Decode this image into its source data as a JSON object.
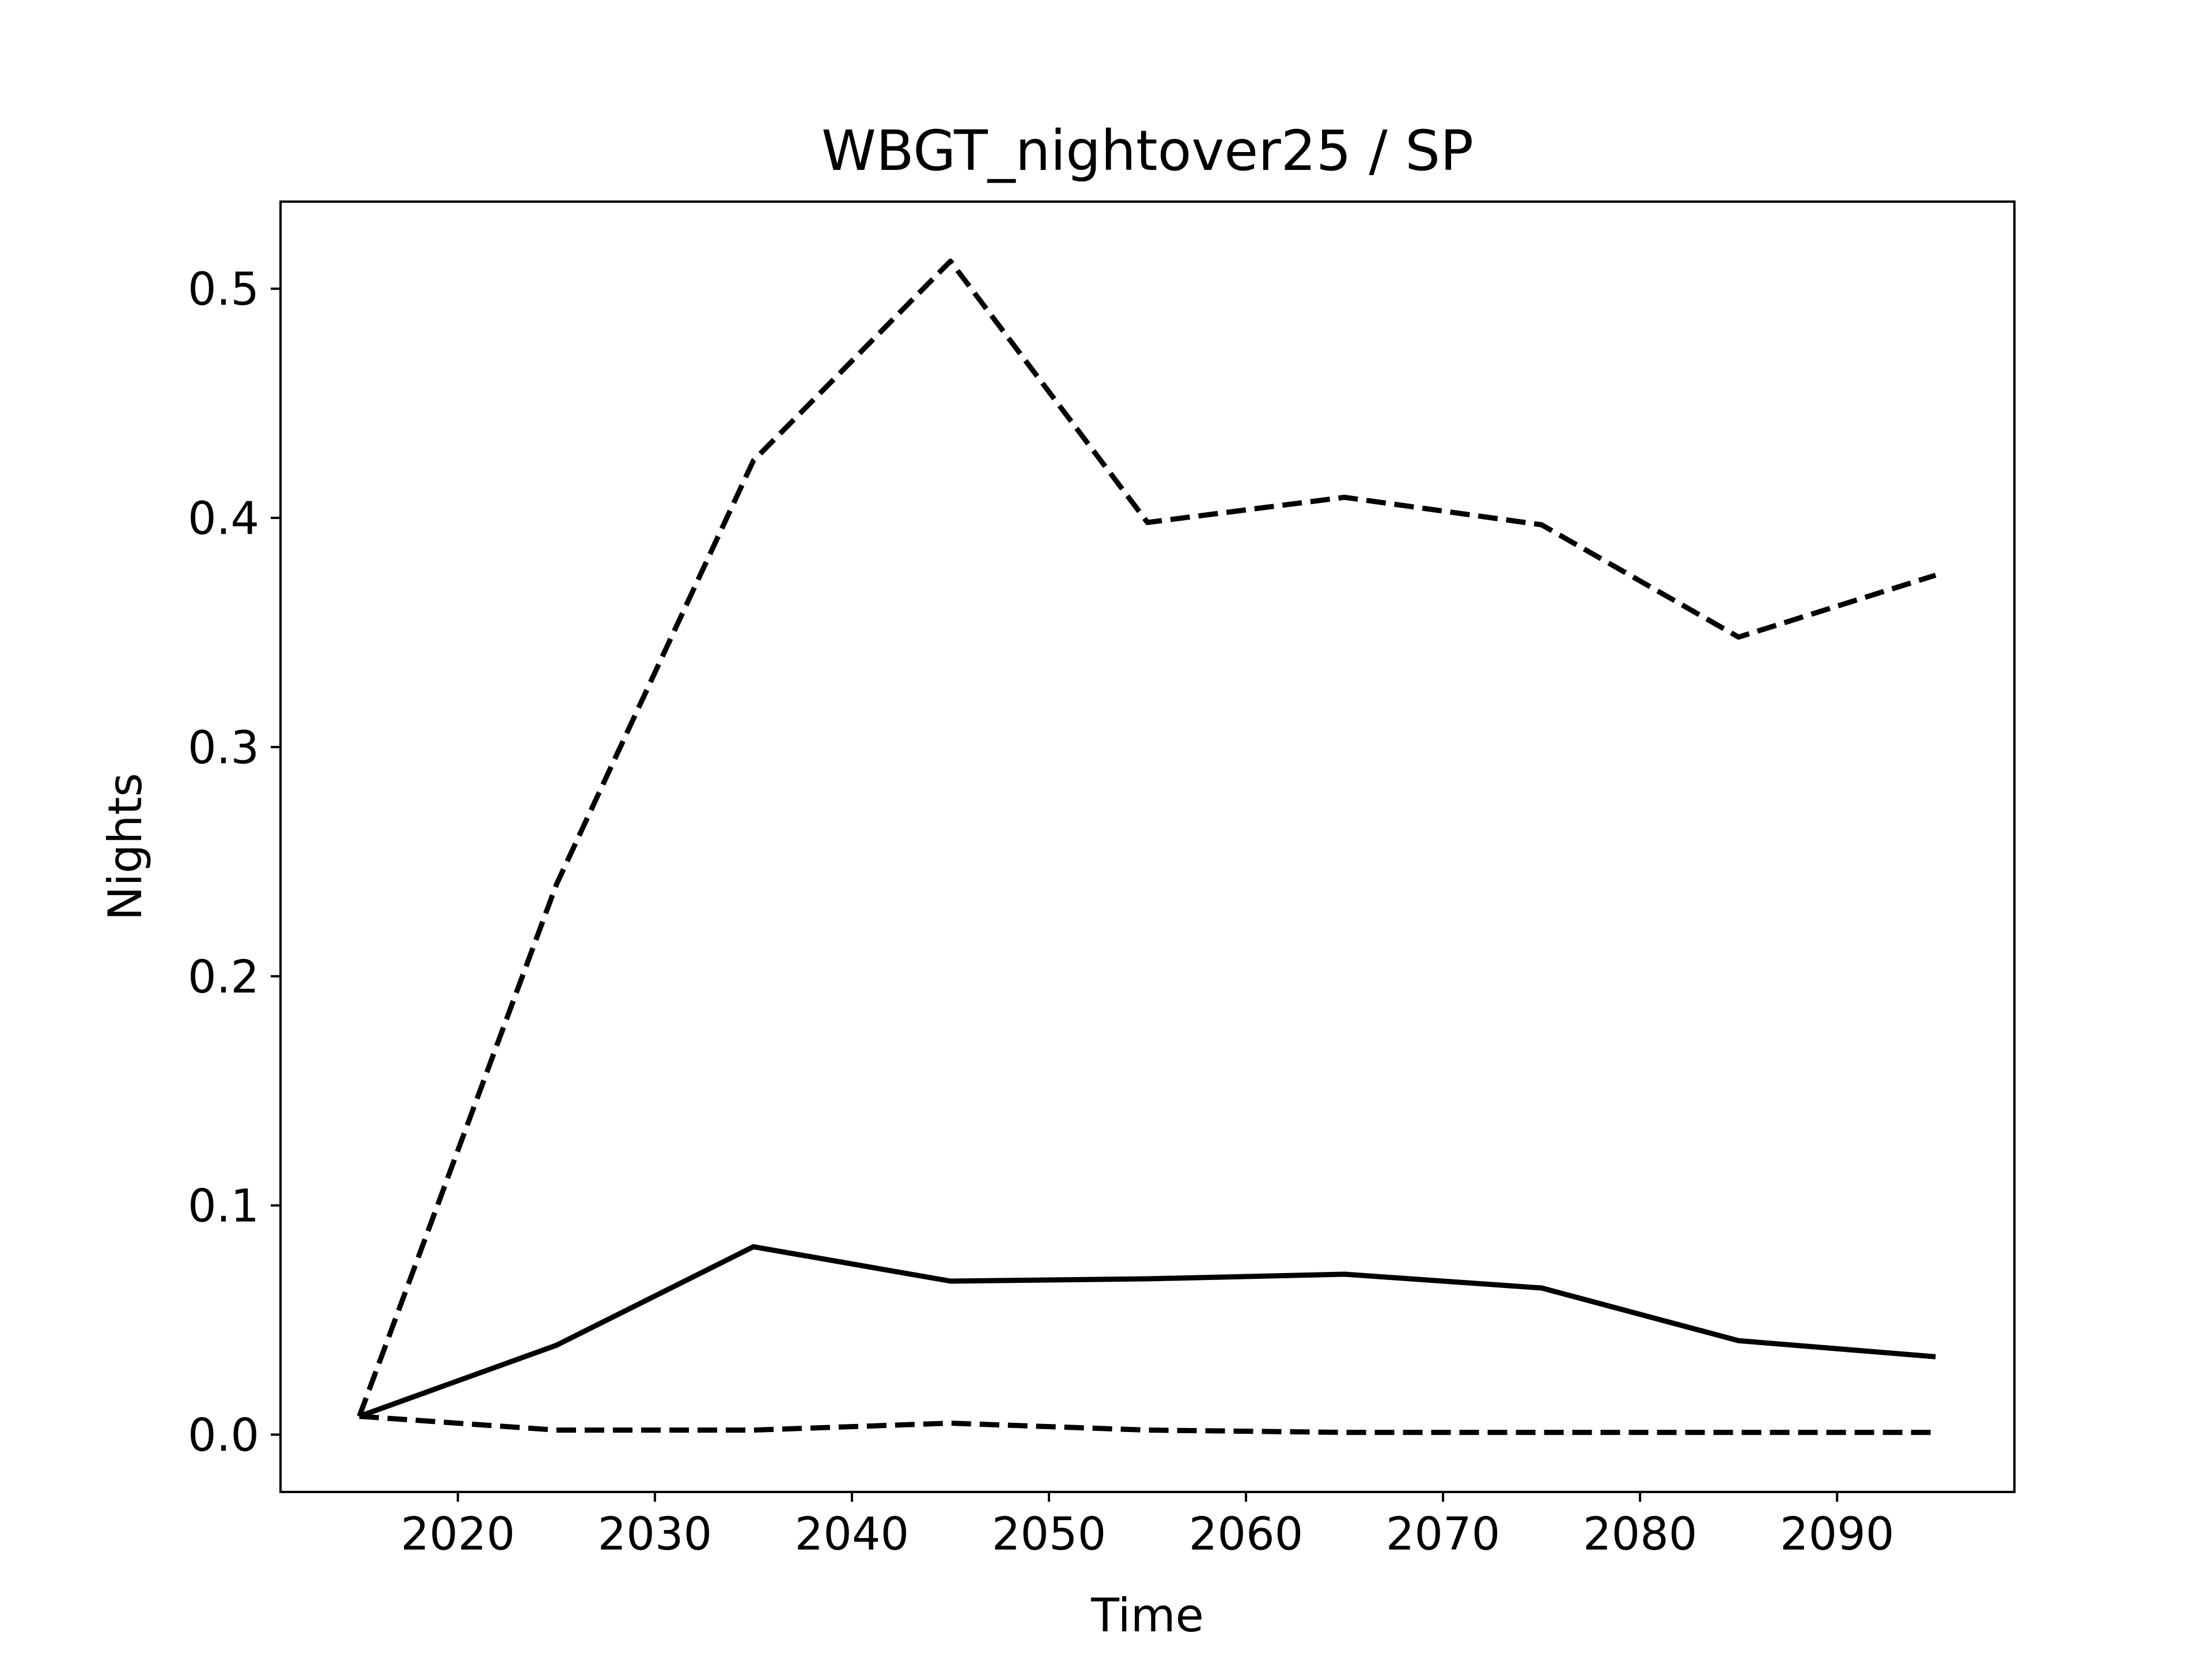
{
  "chart_data": {
    "type": "line",
    "title": "WBGT_nightover25 / SP",
    "xlabel": "Time",
    "ylabel": "Nights",
    "xlim": [
      2011,
      2099
    ],
    "ylim": [
      -0.025,
      0.538
    ],
    "xticks": [
      2020,
      2030,
      2040,
      2050,
      2060,
      2070,
      2080,
      2090
    ],
    "yticks": [
      0.0,
      0.1,
      0.2,
      0.3,
      0.4,
      0.5
    ],
    "ytick_labels": [
      "0.0",
      "0.1",
      "0.2",
      "0.3",
      "0.4",
      "0.5"
    ],
    "grid": false,
    "x": [
      2015,
      2025,
      2035,
      2045,
      2055,
      2065,
      2075,
      2085,
      2095
    ],
    "series": [
      {
        "style": "dashed",
        "color": "#000000",
        "values": [
          0.008,
          0.24,
          0.425,
          0.512,
          0.398,
          0.409,
          0.397,
          0.348,
          0.375
        ]
      },
      {
        "style": "solid",
        "color": "#000000",
        "values": [
          0.008,
          0.039,
          0.082,
          0.067,
          0.068,
          0.07,
          0.064,
          0.041,
          0.034
        ]
      },
      {
        "style": "dashed",
        "color": "#000000",
        "values": [
          0.008,
          0.002,
          0.002,
          0.005,
          0.002,
          0.001,
          0.001,
          0.001,
          0.001
        ]
      }
    ]
  }
}
